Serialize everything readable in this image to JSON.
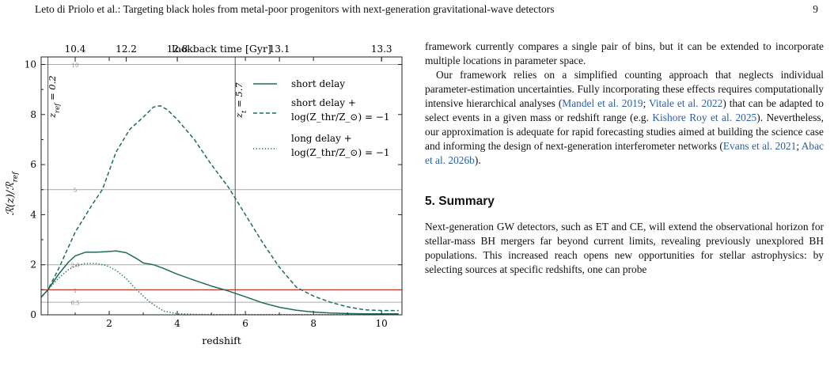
{
  "header": {
    "running_title": "Leto di Priolo et al.: Targeting black holes from metal-poor progenitors with next-generation gravitational-wave detectors",
    "page_number": "9"
  },
  "figure": {
    "top_axis_label": "lookback time [Gyr]",
    "xlabel": "redshift",
    "ylabel": "R(z)/R_ref",
    "vline_left_label": "z_ref = 0.2",
    "vline_right_label": "z_t = 5.7",
    "ref_line_labels": [
      "10",
      "5",
      "2.0",
      "1",
      "0.5"
    ],
    "legend": {
      "short": "short delay",
      "short_low_z_1": "short delay +",
      "short_low_z_2": "log(Z_thr/Z_⊙) = −1",
      "long_low_z_1": "long delay +",
      "long_low_z_2": "log(Z_thr/Z_⊙) = −1"
    },
    "colors": {
      "curves": "#1f6b5e",
      "ref_line_red": "#c0392b",
      "ref_lines_gray": "#aaaaaa",
      "vlines": "#555555"
    }
  },
  "chart_data": {
    "type": "line",
    "xlabel": "redshift",
    "ylabel": "R(z)/R_ref",
    "xlim": [
      0,
      10.6
    ],
    "ylim": [
      0,
      10.3
    ],
    "x_ticks": [
      "2",
      "4",
      "6",
      "8",
      "10"
    ],
    "y_ticks": [
      "0",
      "2",
      "4",
      "6",
      "8",
      "10"
    ],
    "top_axis": {
      "label": "lookback time [Gyr]",
      "ticks": [
        {
          "z": 1.0,
          "label": "10.4"
        },
        {
          "z": 2.5,
          "label": "12.2"
        },
        {
          "z": 4.0,
          "label": "12.8"
        },
        {
          "z": 7.0,
          "label": "13.1"
        },
        {
          "z": 10.0,
          "label": "13.3"
        }
      ]
    },
    "vlines": [
      {
        "x": 0.2,
        "label": "z_ref = 0.2"
      },
      {
        "x": 5.7,
        "label": "z_t = 5.7"
      }
    ],
    "hlines": [
      {
        "y": 10,
        "label": "10"
      },
      {
        "y": 5,
        "label": "5"
      },
      {
        "y": 2,
        "label": "2.0"
      },
      {
        "y": 1,
        "label": "1"
      },
      {
        "y": 0.5,
        "label": "0.5"
      }
    ],
    "series": [
      {
        "name": "short delay",
        "style": "solid",
        "x": [
          0,
          0.2,
          0.5,
          0.8,
          1.0,
          1.3,
          1.6,
          1.9,
          2.2,
          2.5,
          2.8,
          3.0,
          3.3,
          3.6,
          4.0,
          4.5,
          5.0,
          5.5,
          6.0,
          6.5,
          7.0,
          7.5,
          8.0,
          8.5,
          9.0,
          9.5,
          10.0,
          10.5
        ],
        "y": [
          0.7,
          1.0,
          1.6,
          2.1,
          2.35,
          2.5,
          2.5,
          2.52,
          2.55,
          2.48,
          2.25,
          2.07,
          2.0,
          1.85,
          1.62,
          1.38,
          1.15,
          0.95,
          0.72,
          0.48,
          0.3,
          0.18,
          0.11,
          0.07,
          0.05,
          0.04,
          0.04,
          0.04
        ]
      },
      {
        "name": "short delay + log(Z_thr/Z_⊙) = −1",
        "style": "dashed",
        "x": [
          0,
          0.2,
          0.5,
          1.0,
          1.5,
          1.8,
          2.2,
          2.6,
          3.0,
          3.3,
          3.5,
          3.7,
          4.0,
          4.5,
          5.0,
          5.5,
          6.0,
          6.5,
          7.0,
          7.5,
          8.0,
          8.5,
          9.0,
          9.5,
          10.0,
          10.5
        ],
        "y": [
          0.7,
          1.0,
          1.8,
          3.3,
          4.4,
          5.0,
          6.5,
          7.4,
          7.9,
          8.3,
          8.35,
          8.2,
          7.8,
          7.0,
          6.0,
          5.1,
          4.0,
          2.9,
          1.9,
          1.1,
          0.75,
          0.5,
          0.32,
          0.2,
          0.17,
          0.17
        ]
      },
      {
        "name": "long delay + log(Z_thr/Z_⊙) = −1",
        "style": "dotted",
        "x": [
          0,
          0.2,
          0.5,
          0.8,
          1.0,
          1.3,
          1.6,
          1.9,
          2.2,
          2.5,
          2.8,
          3.2,
          3.6,
          4.0,
          4.5,
          5.0,
          6.0,
          7.0,
          8.0,
          9.0,
          10.0,
          10.5
        ],
        "y": [
          0.7,
          1.0,
          1.45,
          1.8,
          1.95,
          2.05,
          2.05,
          1.98,
          1.78,
          1.45,
          1.0,
          0.5,
          0.15,
          0.04,
          0.02,
          0.01,
          0.01,
          0.01,
          0.01,
          0.01,
          0.01,
          0.01
        ]
      }
    ]
  },
  "body": {
    "para1": "framework currently compares a single pair of bins, but it can be extended to incorporate multiple locations in parameter space.",
    "para2_a": "Our framework relies on a simplified counting approach that neglects individual parameter-estimation uncertainties. Fully incorporating these effects requires computationally intensive hierarchical analyses (",
    "cite_mandel": "Mandel et al. 2019",
    "sep1": "; ",
    "cite_vitale": "Vitale et al. 2022",
    "para2_b": ") that can be adapted to select events in a given mass or redshift range (e.g. ",
    "cite_kishore": "Kishore Roy et al. 2025",
    "para2_c": "). Nevertheless, our approximation is adequate for rapid forecasting studies aimed at building the science case and informing the design of next-generation interferometer networks (",
    "cite_evans": "Evans et al. 2021",
    "sep2": "; ",
    "cite_abac": "Abac et al. 2026b",
    "para2_d": ").",
    "summary_heading": "5. Summary",
    "para3": "Next-generation GW detectors, such as ET and CE, will extend the observational horizon for stellar-mass BH mergers far beyond current limits, revealing previously unexplored BH populations. This increased reach opens new opportunities for stellar astrophysics: by selecting sources at specific redshifts, one can probe"
  }
}
